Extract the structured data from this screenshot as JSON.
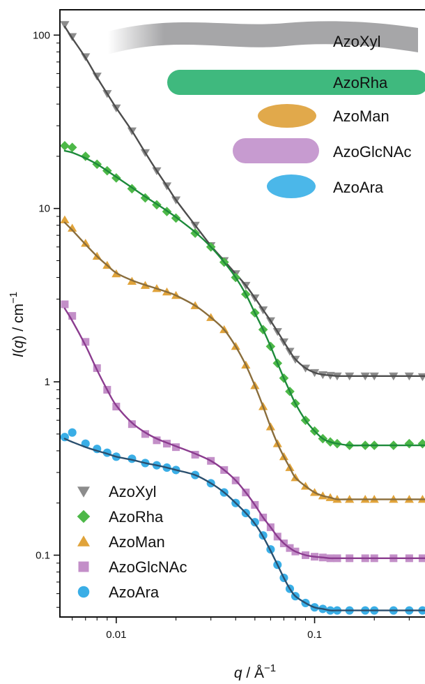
{
  "chart_data": {
    "type": "scatter",
    "title": "",
    "xlabel": "q / Å",
    "xlabel_sup": "−1",
    "ylabel": "I(q) / cm",
    "ylabel_sup": "−1",
    "x_scale": "log",
    "y_scale": "log",
    "xlim": [
      0.0052,
      0.41
    ],
    "ylim": [
      0.044,
      140
    ],
    "x_ticks": [
      {
        "value": 0.01,
        "label": "0.01"
      },
      {
        "value": 0.1,
        "label": "0.1"
      }
    ],
    "y_ticks": [
      {
        "value": 0.1,
        "label": "0.1"
      },
      {
        "value": 1,
        "label": "1"
      },
      {
        "value": 10,
        "label": "10"
      },
      {
        "value": 100,
        "label": "100"
      }
    ],
    "grid": false,
    "legend_position": "bottom-left",
    "shape_legend_position": "top-right",
    "series": [
      {
        "name": "AzoXyl",
        "marker": "triangle-down",
        "color": "#8c8c8c",
        "fit_color": "#4d4d4d",
        "x": [
          0.0055,
          0.006,
          0.007,
          0.008,
          0.009,
          0.01,
          0.012,
          0.014,
          0.016,
          0.018,
          0.02,
          0.025,
          0.03,
          0.035,
          0.04,
          0.045,
          0.05,
          0.055,
          0.06,
          0.065,
          0.07,
          0.075,
          0.08,
          0.09,
          0.1,
          0.11,
          0.12,
          0.13,
          0.15,
          0.18,
          0.2,
          0.25,
          0.3,
          0.35,
          0.4
        ],
        "y": [
          115,
          98,
          75,
          58,
          46,
          38,
          28,
          21,
          16.5,
          13.5,
          11.2,
          8.0,
          6.1,
          5.0,
          4.2,
          3.6,
          3.05,
          2.6,
          2.25,
          1.95,
          1.7,
          1.5,
          1.35,
          1.2,
          1.13,
          1.1,
          1.09,
          1.08,
          1.08,
          1.08,
          1.08,
          1.08,
          1.08,
          1.07,
          1.07
        ],
        "fit_y": [
          112,
          96,
          74,
          57,
          46,
          38,
          28,
          21,
          16.5,
          13.5,
          11.2,
          8.0,
          6.1,
          5.0,
          4.2,
          3.6,
          3.05,
          2.6,
          2.25,
          1.95,
          1.7,
          1.5,
          1.35,
          1.2,
          1.13,
          1.1,
          1.09,
          1.08,
          1.08,
          1.08,
          1.08,
          1.08,
          1.08,
          1.08,
          1.08
        ]
      },
      {
        "name": "AzoRha",
        "marker": "diamond",
        "color": "#4db848",
        "fit_color": "#1d8a3a",
        "x": [
          0.0055,
          0.006,
          0.007,
          0.008,
          0.009,
          0.01,
          0.012,
          0.014,
          0.016,
          0.018,
          0.02,
          0.025,
          0.03,
          0.035,
          0.04,
          0.045,
          0.05,
          0.055,
          0.06,
          0.065,
          0.07,
          0.075,
          0.08,
          0.09,
          0.1,
          0.11,
          0.12,
          0.13,
          0.15,
          0.18,
          0.2,
          0.25,
          0.3,
          0.35,
          0.4
        ],
        "y": [
          23,
          22.5,
          20,
          18,
          16.5,
          15,
          13,
          11.5,
          10.5,
          9.6,
          8.8,
          7.2,
          6.0,
          4.9,
          4.0,
          3.2,
          2.5,
          2.0,
          1.6,
          1.28,
          1.05,
          0.88,
          0.75,
          0.6,
          0.52,
          0.47,
          0.45,
          0.44,
          0.43,
          0.43,
          0.43,
          0.43,
          0.44,
          0.44,
          0.44
        ],
        "fit_y": [
          21.5,
          21,
          19.5,
          18,
          16.5,
          15.2,
          13.2,
          11.7,
          10.6,
          9.7,
          8.9,
          7.3,
          6.0,
          4.9,
          4.0,
          3.2,
          2.5,
          2.0,
          1.6,
          1.28,
          1.05,
          0.88,
          0.75,
          0.6,
          0.52,
          0.47,
          0.45,
          0.44,
          0.43,
          0.43,
          0.43,
          0.43,
          0.43,
          0.43,
          0.43
        ]
      },
      {
        "name": "AzoMan",
        "marker": "triangle-up",
        "color": "#e0a33a",
        "fit_color": "#8a6d3b",
        "x": [
          0.0055,
          0.006,
          0.007,
          0.008,
          0.009,
          0.01,
          0.012,
          0.014,
          0.016,
          0.018,
          0.02,
          0.025,
          0.03,
          0.035,
          0.04,
          0.045,
          0.05,
          0.055,
          0.06,
          0.065,
          0.07,
          0.075,
          0.08,
          0.09,
          0.1,
          0.11,
          0.12,
          0.13,
          0.15,
          0.18,
          0.2,
          0.25,
          0.3,
          0.35,
          0.4
        ],
        "y": [
          8.6,
          7.7,
          6.3,
          5.3,
          4.7,
          4.2,
          3.8,
          3.6,
          3.45,
          3.3,
          3.15,
          2.75,
          2.35,
          2.0,
          1.6,
          1.25,
          0.95,
          0.72,
          0.55,
          0.44,
          0.37,
          0.32,
          0.28,
          0.25,
          0.23,
          0.22,
          0.215,
          0.21,
          0.21,
          0.21,
          0.21,
          0.21,
          0.21,
          0.21,
          0.22
        ],
        "fit_y": [
          8.3,
          7.5,
          6.2,
          5.3,
          4.7,
          4.25,
          3.85,
          3.62,
          3.45,
          3.3,
          3.15,
          2.75,
          2.35,
          2.0,
          1.6,
          1.25,
          0.95,
          0.72,
          0.55,
          0.44,
          0.37,
          0.32,
          0.28,
          0.25,
          0.23,
          0.22,
          0.215,
          0.21,
          0.21,
          0.21,
          0.21,
          0.21,
          0.21,
          0.21,
          0.21
        ]
      },
      {
        "name": "AzoGlcNAc",
        "marker": "square",
        "color": "#c38fc8",
        "fit_color": "#8b3c8f",
        "x": [
          0.0055,
          0.006,
          0.007,
          0.008,
          0.009,
          0.01,
          0.012,
          0.014,
          0.016,
          0.018,
          0.02,
          0.025,
          0.03,
          0.035,
          0.04,
          0.045,
          0.05,
          0.055,
          0.06,
          0.065,
          0.07,
          0.075,
          0.08,
          0.09,
          0.1,
          0.11,
          0.12,
          0.13,
          0.15,
          0.18,
          0.2,
          0.25,
          0.3,
          0.35,
          0.4
        ],
        "y": [
          2.8,
          2.4,
          1.7,
          1.2,
          0.9,
          0.72,
          0.57,
          0.5,
          0.46,
          0.44,
          0.42,
          0.38,
          0.35,
          0.31,
          0.27,
          0.23,
          0.195,
          0.165,
          0.145,
          0.128,
          0.117,
          0.11,
          0.105,
          0.1,
          0.098,
          0.097,
          0.096,
          0.096,
          0.096,
          0.096,
          0.096,
          0.096,
          0.096,
          0.096,
          0.096
        ],
        "fit_y": [
          2.65,
          2.25,
          1.62,
          1.17,
          0.9,
          0.73,
          0.58,
          0.51,
          0.47,
          0.445,
          0.425,
          0.385,
          0.35,
          0.31,
          0.27,
          0.23,
          0.195,
          0.165,
          0.145,
          0.128,
          0.117,
          0.11,
          0.105,
          0.1,
          0.098,
          0.097,
          0.096,
          0.096,
          0.096,
          0.096,
          0.096,
          0.096,
          0.096,
          0.096,
          0.096
        ]
      },
      {
        "name": "AzoAra",
        "marker": "circle",
        "color": "#3aaee6",
        "fit_color": "#2a4f6e",
        "x": [
          0.0055,
          0.006,
          0.007,
          0.008,
          0.009,
          0.01,
          0.012,
          0.014,
          0.016,
          0.018,
          0.02,
          0.025,
          0.03,
          0.035,
          0.04,
          0.045,
          0.05,
          0.055,
          0.06,
          0.065,
          0.07,
          0.075,
          0.08,
          0.09,
          0.1,
          0.11,
          0.12,
          0.13,
          0.15,
          0.18,
          0.2,
          0.25,
          0.3,
          0.35,
          0.4
        ],
        "y": [
          0.48,
          0.51,
          0.44,
          0.41,
          0.39,
          0.37,
          0.36,
          0.34,
          0.33,
          0.32,
          0.31,
          0.29,
          0.26,
          0.23,
          0.2,
          0.175,
          0.155,
          0.13,
          0.108,
          0.088,
          0.074,
          0.064,
          0.058,
          0.053,
          0.05,
          0.049,
          0.048,
          0.048,
          0.048,
          0.048,
          0.048,
          0.048,
          0.048,
          0.048,
          0.048
        ],
        "fit_y": [
          0.47,
          0.45,
          0.42,
          0.4,
          0.385,
          0.37,
          0.355,
          0.34,
          0.33,
          0.32,
          0.31,
          0.29,
          0.26,
          0.23,
          0.2,
          0.175,
          0.152,
          0.128,
          0.106,
          0.088,
          0.074,
          0.064,
          0.058,
          0.053,
          0.05,
          0.049,
          0.048,
          0.048,
          0.048,
          0.048,
          0.048,
          0.048,
          0.048,
          0.048,
          0.048
        ]
      }
    ],
    "shape_legend": [
      {
        "label": "AzoXyl",
        "shape": "flexible-cylinder",
        "color": "#a6a6a8"
      },
      {
        "label": "AzoRha",
        "shape": "cylinder",
        "color": "#3fb97e"
      },
      {
        "label": "AzoMan",
        "shape": "ellipsoid",
        "color": "#e1a94b"
      },
      {
        "label": "AzoGlcNAc",
        "shape": "cylinder",
        "color": "#c79bd0"
      },
      {
        "label": "AzoAra",
        "shape": "ellipsoid",
        "color": "#4bb7e9"
      }
    ]
  }
}
